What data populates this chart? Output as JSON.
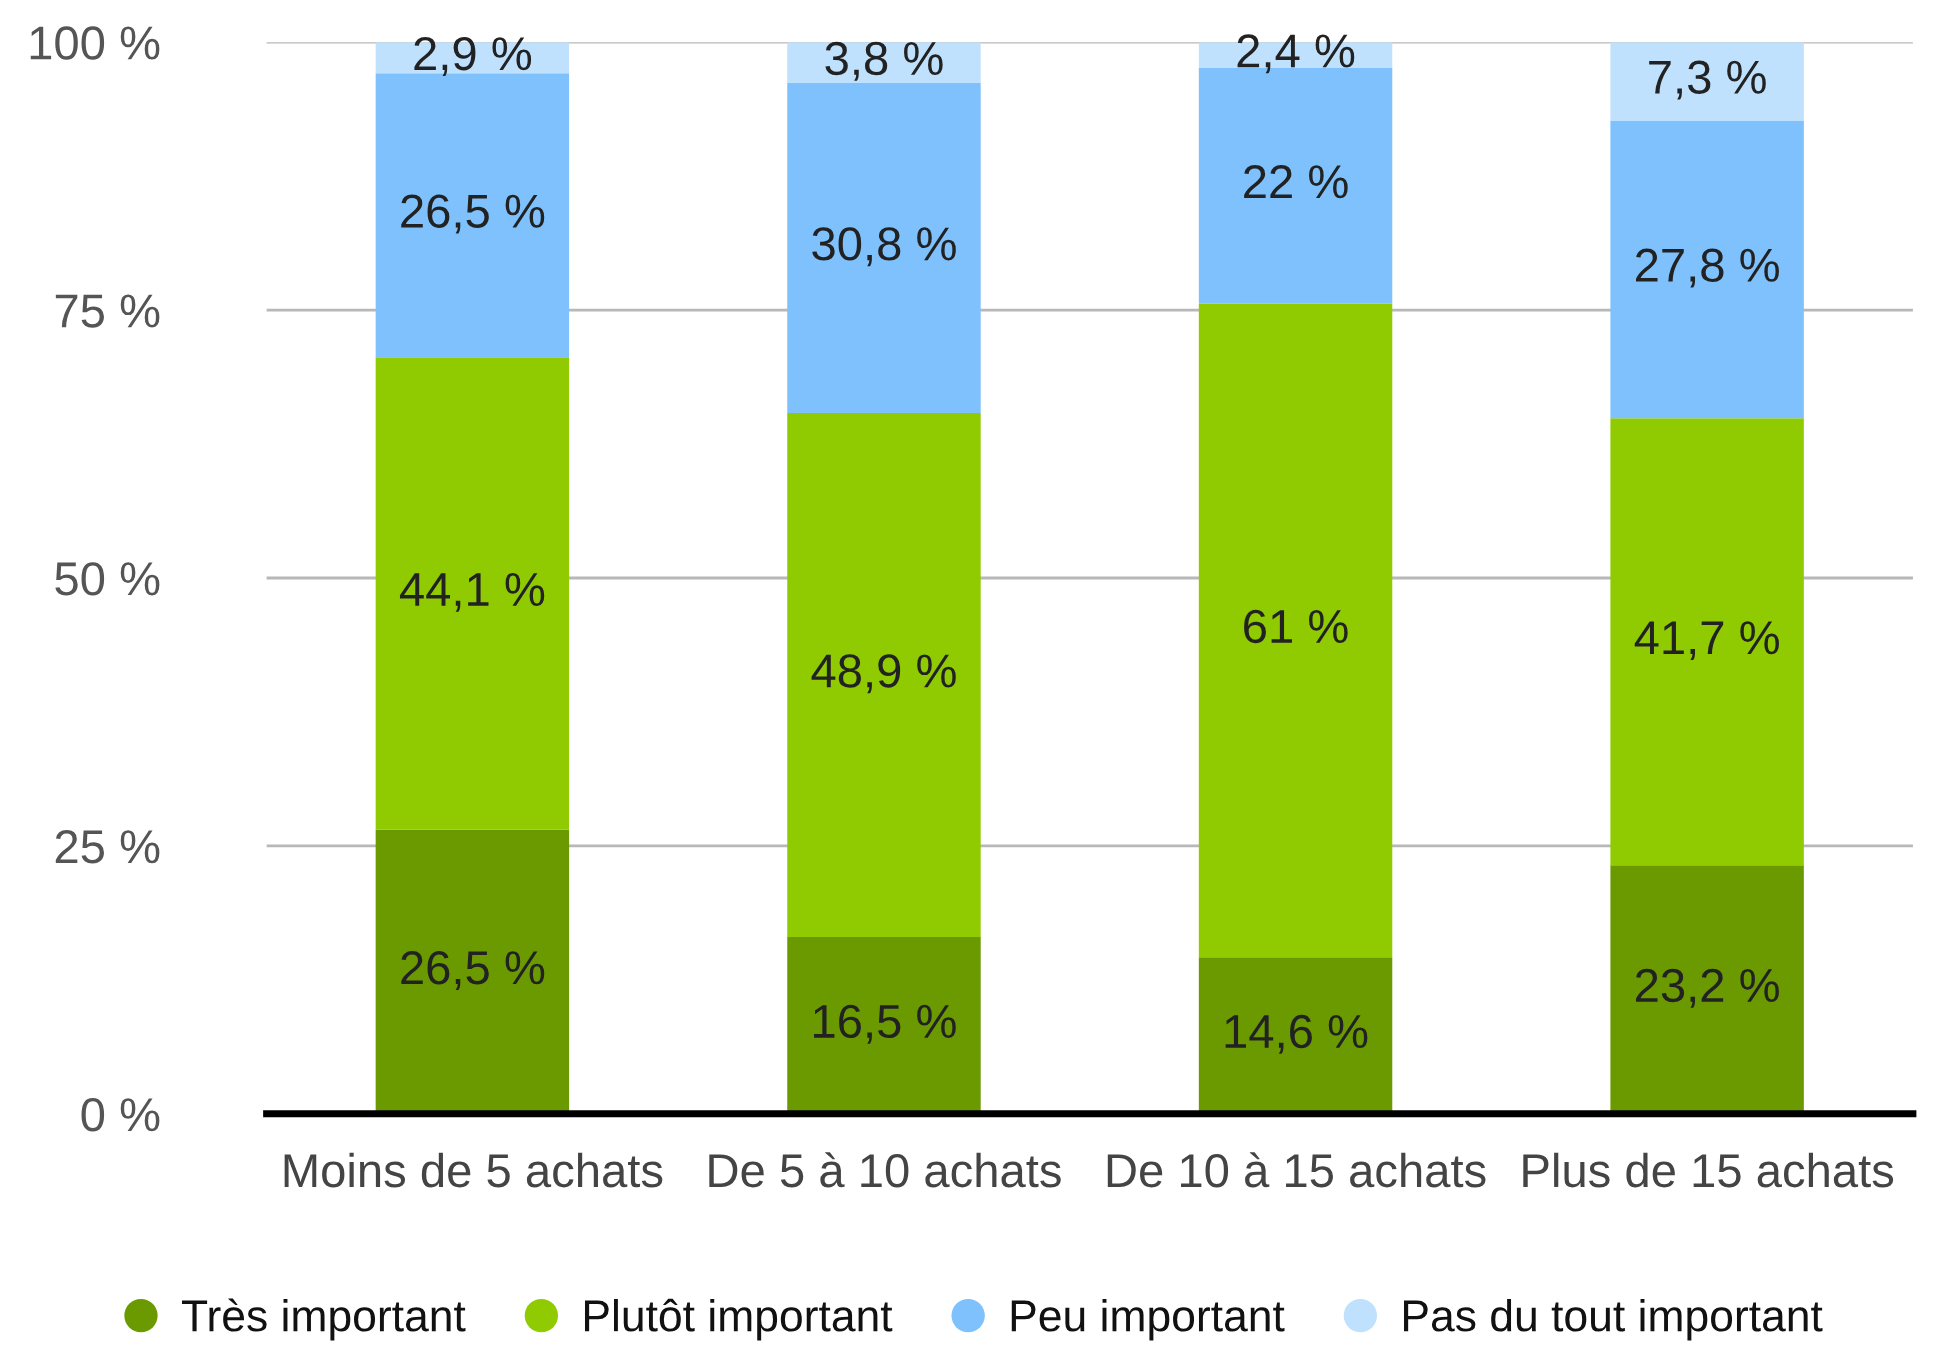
{
  "chart_data": {
    "type": "bar",
    "stacked": true,
    "categories": [
      "Moins de 5 achats",
      "De 5 à 10 achats",
      "De 10 à 15 achats",
      "Plus de 15 achats"
    ],
    "series": [
      {
        "name": "Très important",
        "color": "#6a9a00",
        "values": [
          26.5,
          16.5,
          14.6,
          23.2
        ],
        "value_labels": [
          "26,5 %",
          "16,5 %",
          "14,6 %",
          "23,2 %"
        ]
      },
      {
        "name": "Plutôt important",
        "color": "#8fcb00",
        "values": [
          44.1,
          48.9,
          61,
          41.7
        ],
        "value_labels": [
          "44,1 %",
          "48,9 %",
          "61 %",
          "41,7 %"
        ]
      },
      {
        "name": "Peu important",
        "color": "#7ec1fc",
        "values": [
          26.5,
          30.8,
          22,
          27.8
        ],
        "value_labels": [
          "26,5 %",
          "30,8 %",
          "22 %",
          "27,8 %"
        ]
      },
      {
        "name": "Pas du tout important",
        "color": "#bfe1fe",
        "values": [
          2.9,
          3.8,
          2.4,
          7.3
        ],
        "value_labels": [
          "2,9 %",
          "3,8 %",
          "2,4 %",
          "7,3 %"
        ]
      }
    ],
    "ylim": [
      0,
      100
    ],
    "yticks": [
      {
        "value": 0,
        "label": "0 %"
      },
      {
        "value": 25,
        "label": "25 %"
      },
      {
        "value": 50,
        "label": "50 %"
      },
      {
        "value": 75,
        "label": "75 %"
      },
      {
        "value": 100,
        "label": "100 %"
      }
    ],
    "grid": "y",
    "legend": "bottom"
  }
}
